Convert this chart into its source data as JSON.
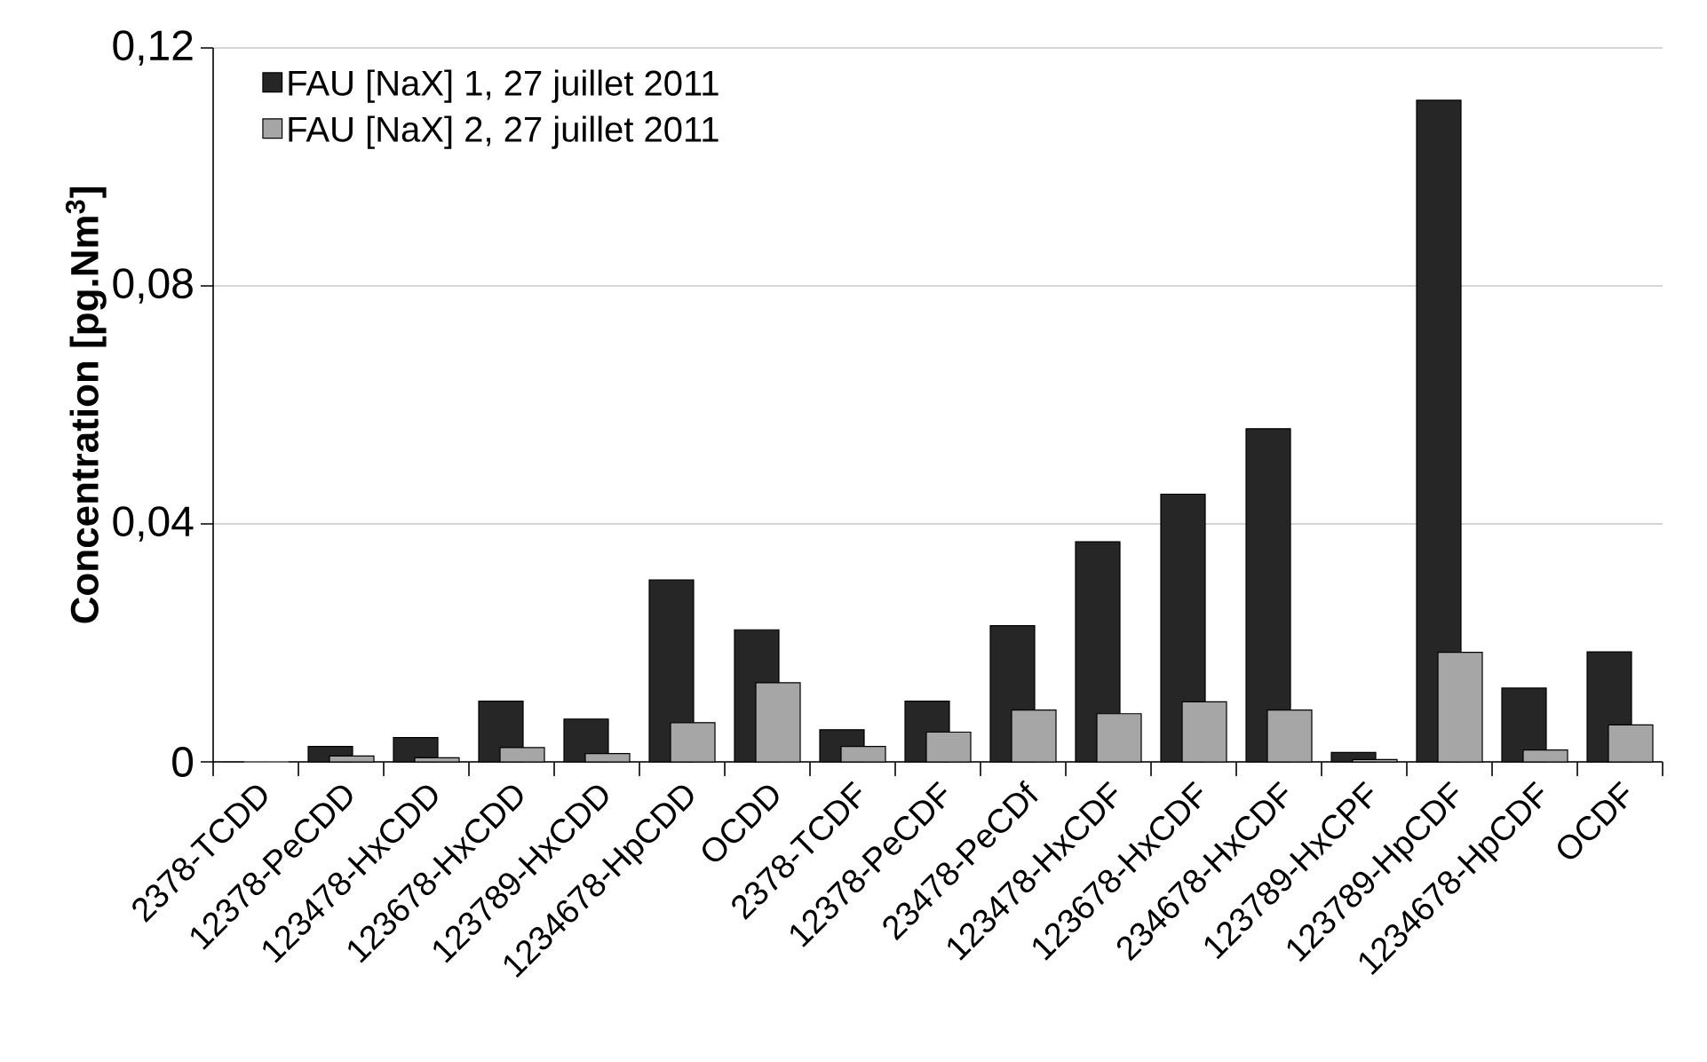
{
  "chart_data": {
    "type": "bar",
    "ylabel": "Concentration [pg.Nm$^{3}$]",
    "categories": [
      "2378-TCDD",
      "12378-PeCDD",
      "123478-HxCDD",
      "123678-HxCDD",
      "123789-HxCDD",
      "1234678-HpCDD",
      "OCDD",
      "2378-TCDF",
      "12378-PeCDF",
      "23478-PeCDf",
      "123478-HxCDF",
      "123678-HxCDF",
      "234678-HxCDF",
      "123789-HxCPF",
      "123789-HpCDF",
      "1234678-HpCDF",
      "OCDF"
    ],
    "series": [
      {
        "name": "FAU [NaX] 1, 27 juillet 2011",
        "color": "#262626",
        "values": [
          0,
          0.0026,
          0.0041,
          0.0102,
          0.0072,
          0.0306,
          0.0222,
          0.0054,
          0.0102,
          0.0229,
          0.037,
          0.045,
          0.056,
          0.0016,
          0.1112,
          0.0124,
          0.0185
        ]
      },
      {
        "name": "FAU [NaX] 2, 27 juillet 2011",
        "color": "#a6a6a6",
        "values": [
          0,
          0.001,
          0.0007,
          0.0024,
          0.0014,
          0.0066,
          0.0133,
          0.0026,
          0.005,
          0.0087,
          0.0081,
          0.0101,
          0.0087,
          0.0004,
          0.0184,
          0.002,
          0.0062
        ]
      }
    ],
    "ylim": [
      0,
      0.12
    ],
    "yticks": [
      0,
      {
        "value": 0.04,
        "label": "0,04"
      },
      {
        "value": 0.08,
        "label": "0,08"
      },
      {
        "value": 0.12,
        "label": "0,12"
      }
    ],
    "grid": "y",
    "legend": "top left"
  }
}
